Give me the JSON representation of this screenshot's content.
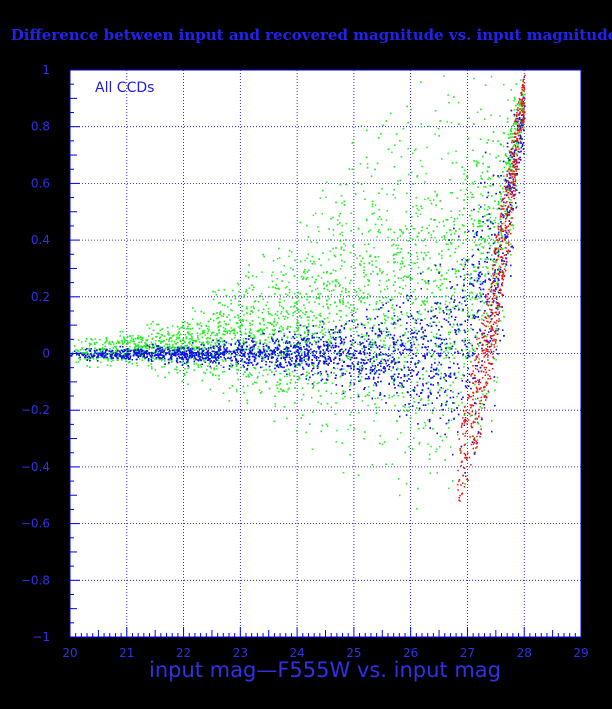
{
  "chart_data": {
    "type": "scatter",
    "title": "Difference between input and recovered magnitude vs. input magnitude",
    "xlabel": "input mag—F555W vs. input mag",
    "ylabel": "",
    "annotation": "All CCDs",
    "xlim": [
      20,
      29
    ],
    "ylim": [
      -1,
      1
    ],
    "xticks": [
      "20",
      "21",
      "22",
      "23",
      "24",
      "25",
      "26",
      "27",
      "28",
      "29"
    ],
    "yticks": [
      "1",
      "0.8",
      "0.6",
      "0.4",
      "0.2",
      "0",
      "−0.2",
      "−0.4",
      "−0.6",
      "−0.8",
      "−1"
    ],
    "grid": true,
    "colors": {
      "background": "#000000",
      "plot_bg": "#ffffff",
      "axis": "#0000ff",
      "grid": "#0000cc",
      "green": "#22ee22",
      "blue": "#1010ee",
      "red": "#ee1111"
    },
    "series": [
      {
        "color": "green",
        "envelope": {
          "mag": [
            20.0,
            21.0,
            22.0,
            23.0,
            24.0,
            25.0,
            26.0,
            26.5,
            27.0,
            27.5,
            28.0
          ],
          "upper": [
            0.05,
            0.09,
            0.15,
            0.3,
            0.45,
            0.8,
            1.0,
            1.0,
            1.0,
            1.0,
            1.0
          ],
          "lower": [
            -0.04,
            -0.06,
            -0.1,
            -0.2,
            -0.3,
            -0.45,
            -0.55,
            -0.55,
            -0.48,
            -0.2,
            0.8
          ]
        }
      },
      {
        "color": "blue",
        "envelope": {
          "mag": [
            20.0,
            21.0,
            22.0,
            23.0,
            24.0,
            25.0,
            26.0,
            26.5,
            27.0,
            27.5,
            28.0
          ],
          "upper": [
            0.02,
            0.03,
            0.04,
            0.06,
            0.1,
            0.15,
            0.25,
            0.4,
            0.6,
            0.85,
            1.0
          ],
          "lower": [
            -0.02,
            -0.03,
            -0.04,
            -0.06,
            -0.09,
            -0.15,
            -0.25,
            -0.35,
            -0.45,
            -0.25,
            0.7
          ]
        }
      },
      {
        "color": "red",
        "envelope": {
          "mag": [
            26.8,
            27.0,
            27.2,
            27.4,
            27.6,
            27.8,
            28.0
          ],
          "upper": [
            -0.35,
            -0.1,
            0.1,
            0.3,
            0.55,
            0.8,
            1.0
          ],
          "lower": [
            -0.55,
            -0.45,
            -0.3,
            -0.1,
            0.2,
            0.5,
            0.85
          ]
        }
      }
    ]
  }
}
